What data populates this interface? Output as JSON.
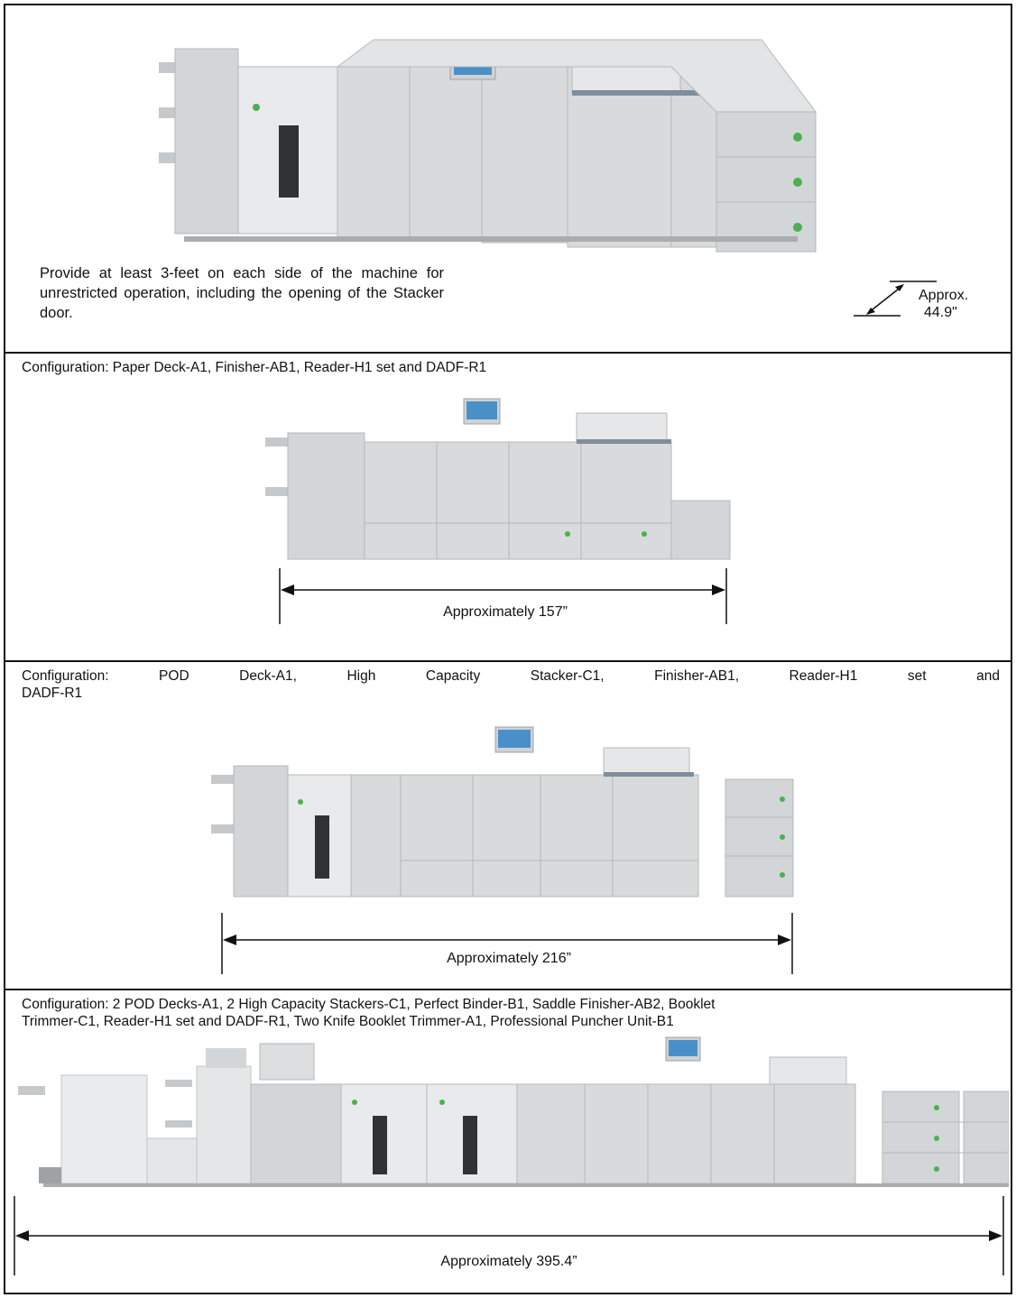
{
  "section1": {
    "note": "Provide at least 3-feet on each side of the machine for unrestricted operation, including the opening of the Stacker door.",
    "depth_label_line1": "Approx.",
    "depth_label_line2": "44.9\""
  },
  "section2": {
    "caption": "Configuration: Paper Deck-A1, Finisher-AB1, Reader-H1 set and DADF-R1",
    "dimension": "Approximately 157”"
  },
  "section3": {
    "caption_line1": "Configuration: POD Deck-A1, High Capacity Stacker-C1, Finisher-AB1, Reader-H1 set and",
    "caption_line2": "DADF-R1",
    "dimension": "Approximately 216”"
  },
  "section4": {
    "caption_line1": "Configuration: 2 POD Decks-A1, 2 High Capacity Stackers-C1, Perfect Binder-B1, Saddle Finisher-AB2, Booklet",
    "caption_line2": "Trimmer-C1, Reader-H1 set and DADF-R1, Two Knife Booklet Trimmer-A1, Professional Puncher Unit-B1",
    "dimension": "Approximately 395.4”"
  },
  "colors": {
    "machine_body": "#d8dadb",
    "machine_shadow": "#b9bcbe",
    "accent_green": "#4caf50",
    "screen_blue": "#4a90c8"
  },
  "icons": [
    "arrow-double-horizontal",
    "arrow-double-diagonal"
  ]
}
